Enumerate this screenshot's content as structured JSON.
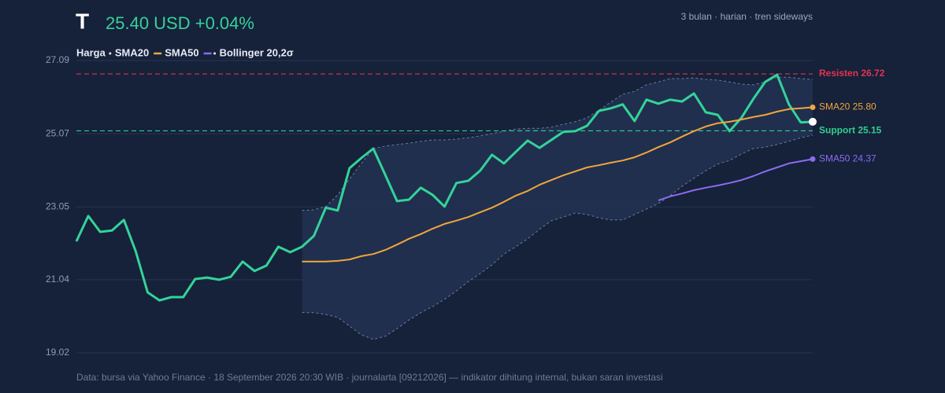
{
  "chart_data": {
    "type": "line",
    "symbol": "T",
    "price_label": "25.40 USD +0.04%",
    "subtitle": "3 bulan · harian · tren sideways",
    "footer": "Data: bursa via Yahoo Finance · 18 September 2026 20:30 WIB · journalarta [09212026] — indikator dihitung internal, bukan saran investasi",
    "categories": [
      null,
      null,
      null,
      null,
      null,
      null,
      null,
      null,
      null,
      null,
      null,
      null,
      null,
      null,
      null,
      null,
      null,
      null,
      null,
      null,
      null,
      null,
      null,
      null,
      null,
      null,
      null,
      null,
      null,
      null,
      null,
      null,
      null,
      null,
      null,
      null,
      null,
      null,
      null,
      null,
      null,
      null,
      null,
      null,
      null,
      null,
      null,
      null,
      null,
      null,
      null,
      null,
      null,
      null,
      null,
      null,
      null,
      null,
      null,
      null,
      null,
      null,
      null
    ],
    "ylim": [
      19.02,
      27.09
    ],
    "yticks": [
      19.02,
      21.04,
      23.05,
      25.07,
      27.09
    ],
    "grid": true,
    "band": {
      "name": "Bollinger 20,2σ",
      "color": "#7f8fb8",
      "upper": [
        null,
        null,
        null,
        null,
        null,
        null,
        null,
        null,
        null,
        null,
        null,
        null,
        null,
        null,
        null,
        null,
        null,
        null,
        null,
        22.95,
        22.97,
        23.06,
        23.38,
        23.82,
        24.25,
        24.66,
        24.73,
        24.77,
        24.81,
        24.86,
        24.9,
        24.9,
        24.92,
        24.96,
        25.01,
        25.07,
        25.14,
        25.2,
        25.22,
        25.22,
        25.25,
        25.33,
        25.4,
        25.51,
        25.72,
        25.94,
        26.16,
        26.24,
        26.42,
        26.5,
        26.59,
        26.59,
        26.61,
        26.57,
        26.55,
        26.5,
        26.44,
        26.42,
        26.5,
        26.63,
        26.63,
        26.59,
        26.57
      ],
      "lower": [
        null,
        null,
        null,
        null,
        null,
        null,
        null,
        null,
        null,
        null,
        null,
        null,
        null,
        null,
        null,
        null,
        null,
        null,
        null,
        20.13,
        20.13,
        20.08,
        20.0,
        19.76,
        19.52,
        19.39,
        19.48,
        19.69,
        19.93,
        20.13,
        20.3,
        20.5,
        20.73,
        20.99,
        21.21,
        21.45,
        21.75,
        21.95,
        22.17,
        22.43,
        22.67,
        22.77,
        22.88,
        22.84,
        22.75,
        22.69,
        22.69,
        22.84,
        22.99,
        23.14,
        23.36,
        23.62,
        23.84,
        24.05,
        24.23,
        24.33,
        24.51,
        24.66,
        24.7,
        24.77,
        24.86,
        24.96,
        25.03
      ]
    },
    "series": [
      {
        "name": "Harga",
        "color": "#34d399",
        "values": [
          22.1,
          22.8,
          22.36,
          22.4,
          22.69,
          21.82,
          20.69,
          20.47,
          20.56,
          20.56,
          21.06,
          21.1,
          21.04,
          21.12,
          21.54,
          21.28,
          21.43,
          21.95,
          21.8,
          21.95,
          22.25,
          23.03,
          22.95,
          24.12,
          24.4,
          24.66,
          23.94,
          23.21,
          23.25,
          23.58,
          23.38,
          23.06,
          23.71,
          23.77,
          24.05,
          24.49,
          24.25,
          24.57,
          24.88,
          24.68,
          24.9,
          25.12,
          25.14,
          25.29,
          25.7,
          25.77,
          25.88,
          25.42,
          26.01,
          25.9,
          26.01,
          25.96,
          26.18,
          25.66,
          25.59,
          25.14,
          25.51,
          26.03,
          26.5,
          26.7,
          25.88,
          25.38,
          25.4
        ]
      },
      {
        "name": "SMA20",
        "color": "#f0a63c",
        "label": "SMA20 25.80",
        "values": [
          null,
          null,
          null,
          null,
          null,
          null,
          null,
          null,
          null,
          null,
          null,
          null,
          null,
          null,
          null,
          null,
          null,
          null,
          null,
          21.54,
          21.54,
          21.54,
          21.56,
          21.6,
          21.69,
          21.75,
          21.86,
          22.01,
          22.17,
          22.3,
          22.45,
          22.58,
          22.67,
          22.77,
          22.9,
          23.03,
          23.19,
          23.36,
          23.49,
          23.66,
          23.79,
          23.92,
          24.03,
          24.14,
          24.2,
          24.27,
          24.33,
          24.42,
          24.55,
          24.7,
          24.83,
          24.99,
          25.14,
          25.27,
          25.36,
          25.4,
          25.46,
          25.53,
          25.59,
          25.68,
          25.75,
          25.77,
          25.8
        ]
      },
      {
        "name": "SMA50",
        "color": "#8b6cf0",
        "label": "SMA50 24.37",
        "values": [
          null,
          null,
          null,
          null,
          null,
          null,
          null,
          null,
          null,
          null,
          null,
          null,
          null,
          null,
          null,
          null,
          null,
          null,
          null,
          null,
          null,
          null,
          null,
          null,
          null,
          null,
          null,
          null,
          null,
          null,
          null,
          null,
          null,
          null,
          null,
          null,
          null,
          null,
          null,
          null,
          null,
          null,
          null,
          null,
          null,
          null,
          null,
          null,
          null,
          23.23,
          23.34,
          23.42,
          23.51,
          23.58,
          23.64,
          23.71,
          23.79,
          23.9,
          24.03,
          24.14,
          24.25,
          24.31,
          24.37
        ]
      }
    ],
    "hlines": [
      {
        "label": "Resisten 26.72",
        "value": 26.72,
        "color": "#e0344f"
      },
      {
        "label": "Support 25.15",
        "value": 25.15,
        "color": "#2fd08f"
      }
    ]
  }
}
